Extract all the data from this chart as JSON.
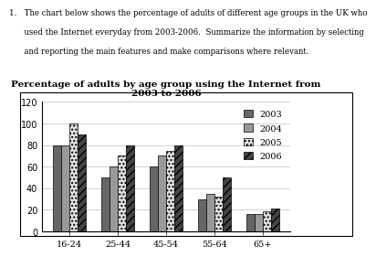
{
  "title": "Percentage of adults by age group using the Internet from\n2003 to 2006",
  "categories": [
    "16-24",
    "25-44",
    "45-54",
    "55-64",
    "65+"
  ],
  "years": [
    "2003",
    "2004",
    "2005",
    "2006"
  ],
  "values": {
    "2003": [
      80,
      50,
      60,
      30,
      16
    ],
    "2004": [
      80,
      60,
      70,
      35,
      16
    ],
    "2005": [
      100,
      70,
      75,
      32,
      19
    ],
    "2006": [
      90,
      80,
      80,
      50,
      21
    ]
  },
  "ylim": [
    0,
    120
  ],
  "yticks": [
    0,
    20,
    40,
    60,
    80,
    100,
    120
  ],
  "bar_colors": [
    "#666666",
    "#999999",
    "#e0e0e0",
    "#444444"
  ],
  "bar_hatches": [
    "",
    "",
    "....",
    "////"
  ],
  "title_fontsize": 7.5,
  "axis_fontsize": 7,
  "legend_fontsize": 7,
  "text_line1": "1.   The chart below shows the percentage of adults of different age groups in the UK who",
  "text_line2": "      used the Internet everyday from 2003-2006.  Summarize the information by selecting",
  "text_line3": "      and reporting the main features and make comparisons where relevant."
}
